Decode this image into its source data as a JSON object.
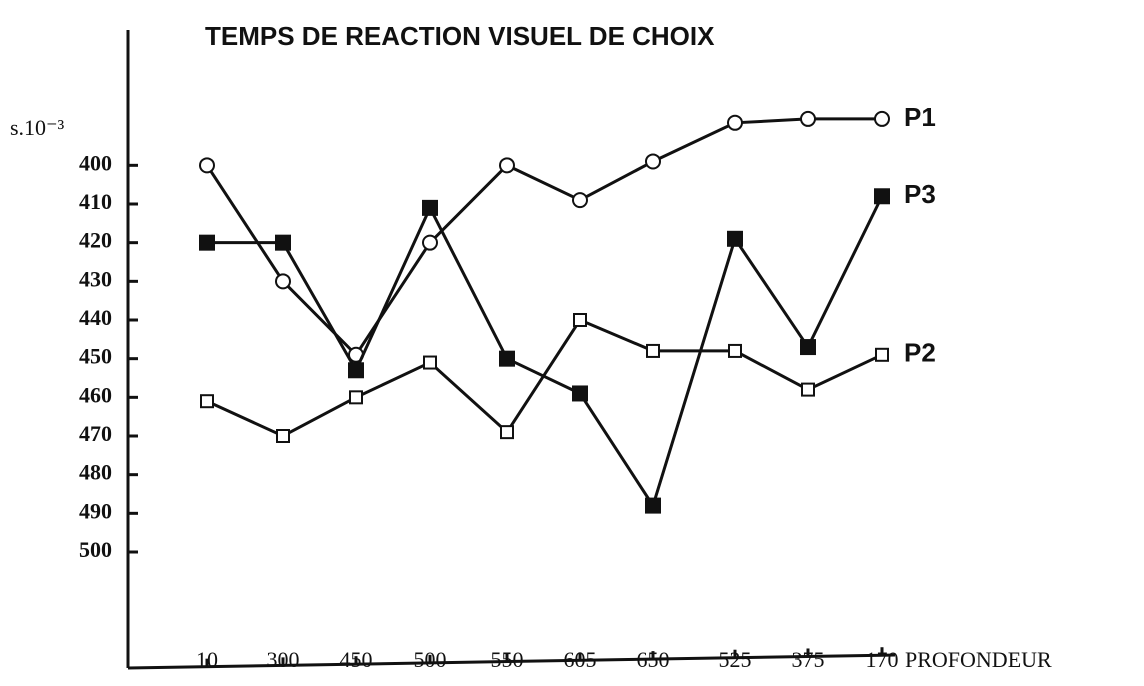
{
  "chart_data": {
    "type": "line",
    "title": "TEMPS DE REACTION VISUEL DE CHOIX",
    "y_label": "s.10⁻³",
    "x_label": "PROFONDEUR",
    "categories": [
      "10",
      "300",
      "450",
      "500",
      "550",
      "605",
      "650",
      "525",
      "375",
      "170"
    ],
    "series": [
      {
        "name": "P1",
        "color": "#111111",
        "marker": "open-circle",
        "values": [
          400,
          430,
          449,
          420,
          400,
          409,
          399,
          389,
          388,
          388
        ]
      },
      {
        "name": "P2",
        "color": "#111111",
        "marker": "open-square",
        "values": [
          461,
          470,
          460,
          451,
          469,
          440,
          448,
          448,
          458,
          449
        ]
      },
      {
        "name": "P3",
        "color": "#111111",
        "marker": "filled-square",
        "values": [
          420,
          420,
          453,
          411,
          450,
          459,
          488,
          419,
          447,
          408
        ]
      }
    ],
    "ylim": [
      530,
      365
    ],
    "yticks": [
      400,
      410,
      420,
      430,
      440,
      450,
      460,
      470,
      480,
      490,
      500
    ]
  }
}
